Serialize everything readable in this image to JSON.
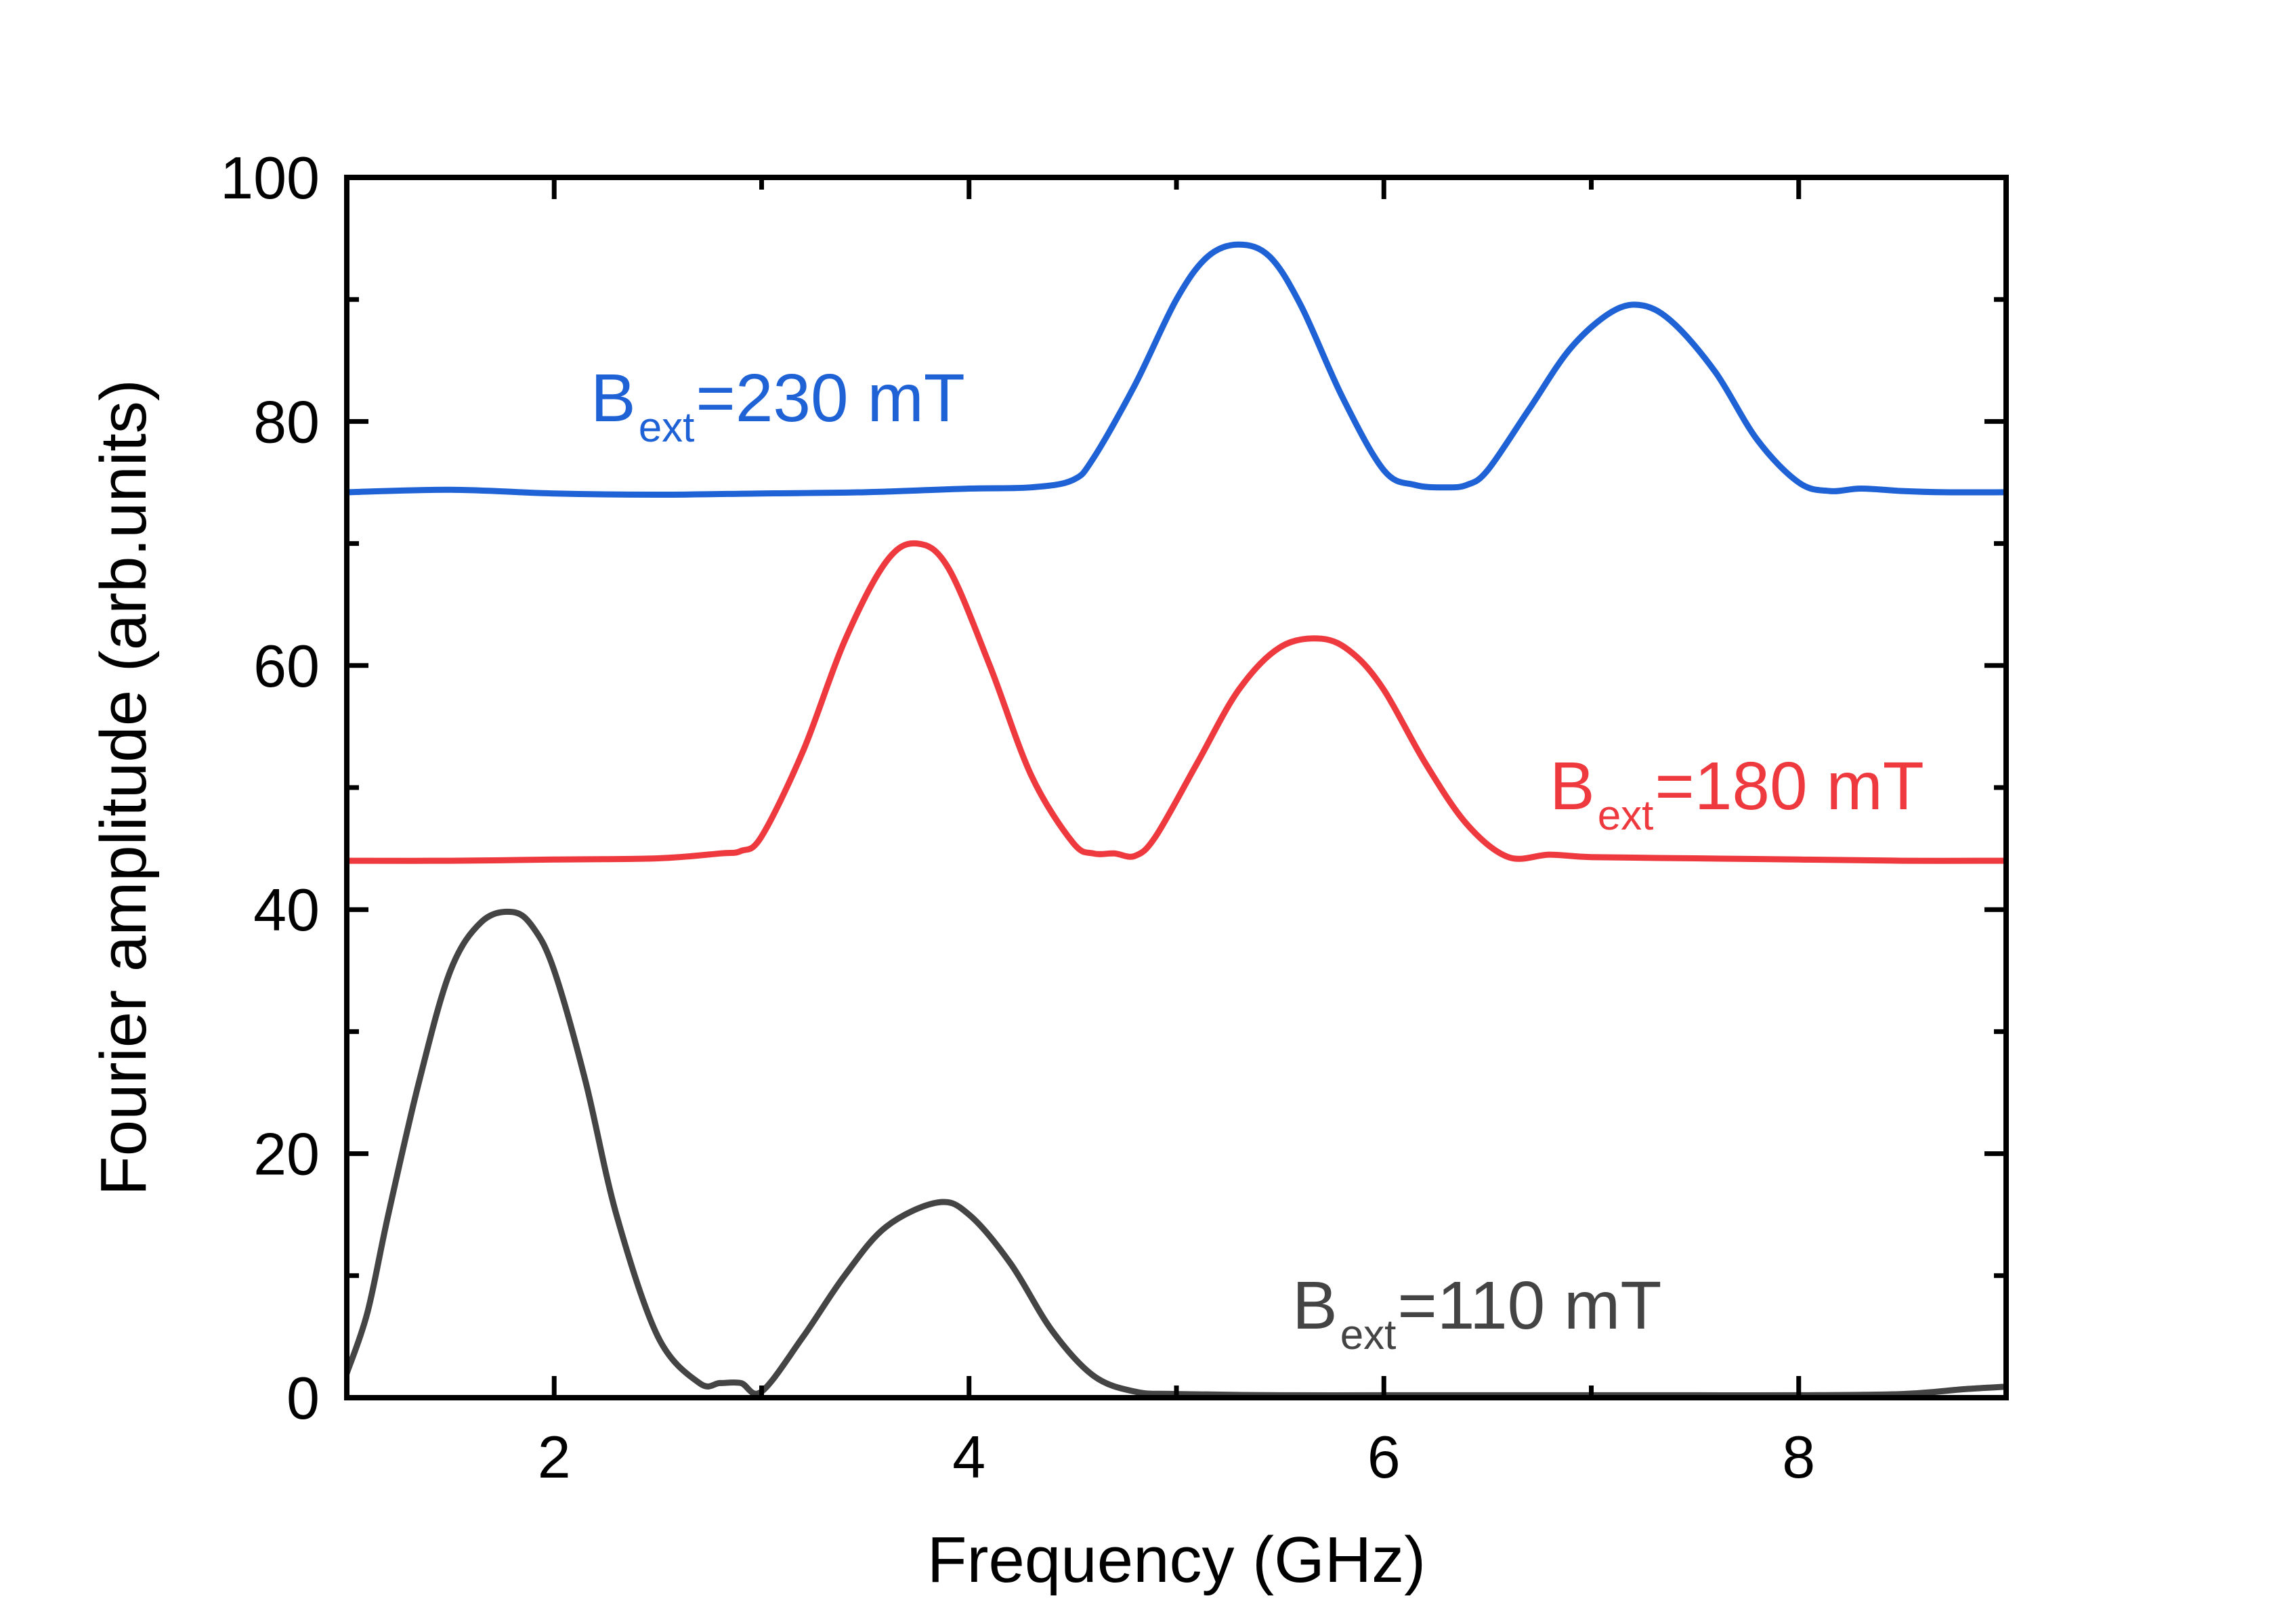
{
  "chart_data": {
    "type": "line",
    "title": "",
    "xlabel": "Frequency (GHz)",
    "ylabel": "Fourier amplitude (arb.units)",
    "xlim": [
      1,
      9
    ],
    "ylim": [
      0,
      100
    ],
    "xticks": [
      2,
      4,
      6,
      8
    ],
    "yticks": [
      0,
      20,
      40,
      60,
      80,
      100
    ],
    "xtick_labels": [
      "2",
      "4",
      "6",
      "8"
    ],
    "ytick_labels": [
      "0",
      "20",
      "40",
      "60",
      "80",
      "100"
    ],
    "grid": false,
    "series": [
      {
        "name": "Bext=230 mT",
        "label_main": "B",
        "label_sub": "ext",
        "label_rest": "=230 mT",
        "color": "#1f62d6",
        "x": [
          1.0,
          1.5,
          2.0,
          2.5,
          3.0,
          3.5,
          4.0,
          4.3,
          4.5,
          4.6,
          4.8,
          5.0,
          5.15,
          5.3,
          5.45,
          5.6,
          5.8,
          6.0,
          6.15,
          6.3,
          6.4,
          6.5,
          6.7,
          6.9,
          7.1,
          7.25,
          7.4,
          7.6,
          7.8,
          8.0,
          8.15,
          8.3,
          8.5,
          8.7,
          9.0
        ],
        "y": [
          74.2,
          74.4,
          74.1,
          74.0,
          74.1,
          74.2,
          74.5,
          74.6,
          75.2,
          77,
          83,
          90,
          93.5,
          94.5,
          93.5,
          89.5,
          82,
          76,
          74.8,
          74.6,
          74.8,
          76,
          81,
          86,
          89,
          89.5,
          88,
          84,
          78.5,
          75,
          74.3,
          74.5,
          74.3,
          74.2,
          74.2
        ]
      },
      {
        "name": "Bext=180 mT",
        "label_main": "B",
        "label_sub": "ext",
        "label_rest": "=180 mT",
        "color": "#ee3a3f",
        "x": [
          1.0,
          1.5,
          2.0,
          2.5,
          2.8,
          2.9,
          3.0,
          3.2,
          3.4,
          3.6,
          3.75,
          3.9,
          4.1,
          4.3,
          4.5,
          4.6,
          4.7,
          4.8,
          4.9,
          5.1,
          5.3,
          5.5,
          5.7,
          5.85,
          6.0,
          6.2,
          6.4,
          6.6,
          6.8,
          7.0,
          7.5,
          8.0,
          8.5,
          9.0
        ],
        "y": [
          44.0,
          44.0,
          44.1,
          44.2,
          44.6,
          44.8,
          46,
          53,
          62,
          68.5,
          70,
          68,
          60,
          51,
          45.5,
          44.6,
          44.6,
          44.4,
          46,
          52,
          58,
          61.5,
          62.2,
          61,
          58,
          52,
          47,
          44.3,
          44.5,
          44.3,
          44.2,
          44.1,
          44.0,
          44.0
        ]
      },
      {
        "name": "Bext=110 mT",
        "label_main": "B",
        "label_sub": "ext",
        "label_rest": "=110 mT",
        "color": "#444444",
        "x": [
          1.0,
          1.1,
          1.2,
          1.35,
          1.5,
          1.65,
          1.8,
          1.9,
          2.0,
          2.15,
          2.3,
          2.5,
          2.7,
          2.8,
          2.9,
          3.0,
          3.2,
          3.4,
          3.6,
          3.85,
          4.0,
          4.2,
          4.4,
          4.6,
          4.8,
          5.0,
          5.5,
          6.0,
          6.5,
          7.0,
          7.5,
          8.0,
          8.5,
          8.8,
          9.0
        ],
        "y": [
          2,
          7,
          15,
          26,
          35,
          39,
          39.8,
          38.5,
          35,
          26,
          15,
          5,
          1.2,
          1.2,
          1.2,
          0.5,
          5,
          10,
          14,
          16,
          15,
          11,
          5.5,
          1.8,
          0.5,
          0.3,
          0.2,
          0.2,
          0.2,
          0.2,
          0.2,
          0.2,
          0.3,
          0.7,
          0.9
        ]
      }
    ]
  }
}
